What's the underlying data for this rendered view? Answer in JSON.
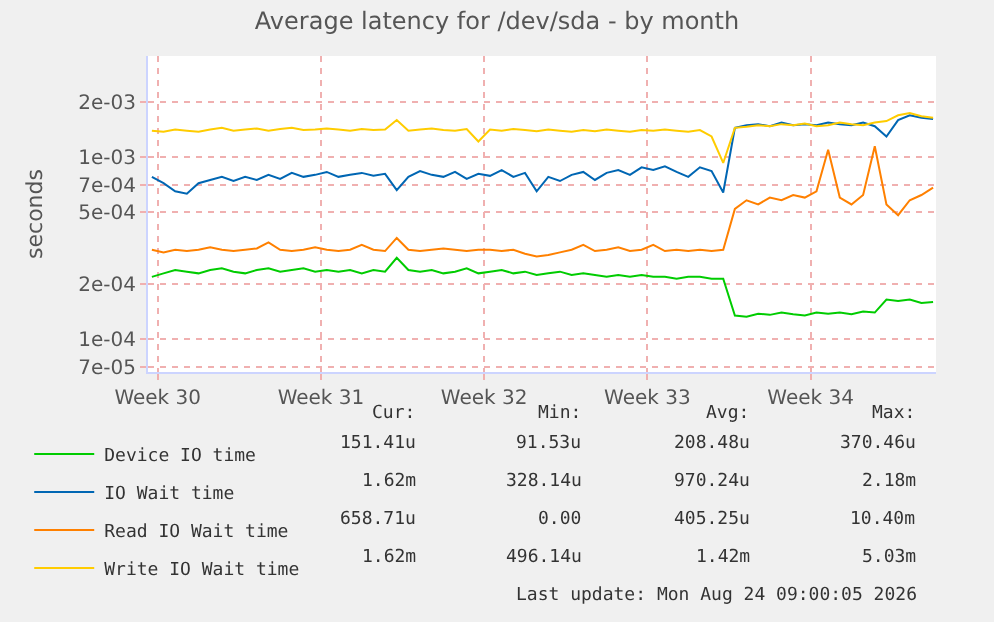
{
  "chart_data": {
    "type": "line",
    "title": "Average latency for /dev/sda - by month",
    "ylabel": "seconds",
    "x": [
      "2026-07-21T18:00",
      "2026-07-22T06:00",
      "2026-07-22T18:00",
      "2026-07-23T06:00",
      "2026-07-23T18:00",
      "2026-07-24T06:00",
      "2026-07-24T18:00",
      "2026-07-25T06:00",
      "2026-07-25T18:00",
      "2026-07-26T06:00",
      "2026-07-26T18:00",
      "2026-07-27T06:00",
      "2026-07-27T18:00",
      "2026-07-28T06:00",
      "2026-07-28T18:00",
      "2026-07-29T06:00",
      "2026-07-29T18:00",
      "2026-07-30T06:00",
      "2026-07-30T18:00",
      "2026-07-31T06:00",
      "2026-07-31T18:00",
      "2026-08-01T06:00",
      "2026-08-01T18:00",
      "2026-08-02T06:00",
      "2026-08-02T18:00",
      "2026-08-03T06:00",
      "2026-08-03T18:00",
      "2026-08-04T06:00",
      "2026-08-04T18:00",
      "2026-08-05T06:00",
      "2026-08-05T18:00",
      "2026-08-06T06:00",
      "2026-08-06T18:00",
      "2026-08-07T06:00",
      "2026-08-07T18:00",
      "2026-08-08T06:00",
      "2026-08-08T18:00",
      "2026-08-09T06:00",
      "2026-08-09T18:00",
      "2026-08-10T06:00",
      "2026-08-10T18:00",
      "2026-08-11T06:00",
      "2026-08-11T18:00",
      "2026-08-12T06:00",
      "2026-08-12T18:00",
      "2026-08-13T06:00",
      "2026-08-13T18:00",
      "2026-08-14T06:00",
      "2026-08-14T18:00",
      "2026-08-15T06:00",
      "2026-08-15T18:00",
      "2026-08-16T06:00",
      "2026-08-16T18:00",
      "2026-08-17T06:00",
      "2026-08-17T18:00",
      "2026-08-18T06:00",
      "2026-08-18T18:00",
      "2026-08-19T06:00",
      "2026-08-19T18:00",
      "2026-08-20T06:00",
      "2026-08-20T18:00",
      "2026-08-21T06:00",
      "2026-08-21T18:00",
      "2026-08-22T06:00",
      "2026-08-22T18:00",
      "2026-08-23T06:00",
      "2026-08-23T18:00",
      "2026-08-24T06:00"
    ],
    "series": [
      {
        "name": "Device IO time",
        "color": "#00cc00",
        "values": [
          0.00022,
          0.00023,
          0.00024,
          0.000235,
          0.00023,
          0.00024,
          0.000245,
          0.000235,
          0.00023,
          0.00024,
          0.000245,
          0.000235,
          0.00024,
          0.000245,
          0.000235,
          0.00024,
          0.000235,
          0.00024,
          0.00023,
          0.00024,
          0.000235,
          0.00028,
          0.00024,
          0.000235,
          0.00024,
          0.00023,
          0.000235,
          0.000245,
          0.00023,
          0.000235,
          0.00024,
          0.00023,
          0.000235,
          0.000225,
          0.00023,
          0.000235,
          0.000225,
          0.00023,
          0.000225,
          0.00022,
          0.000225,
          0.00022,
          0.000225,
          0.00022,
          0.00022,
          0.000215,
          0.00022,
          0.00022,
          0.000215,
          0.000215,
          0.000135,
          0.000133,
          0.000138,
          0.000136,
          0.00014,
          0.000137,
          0.000135,
          0.00014,
          0.000138,
          0.00014,
          0.000137,
          0.000142,
          0.00014,
          0.000165,
          0.000162,
          0.000165,
          0.000158,
          0.00016
        ]
      },
      {
        "name": "IO Wait time",
        "color": "#0066b3",
        "values": [
          0.00078,
          0.00072,
          0.00065,
          0.00063,
          0.00072,
          0.00075,
          0.00078,
          0.00074,
          0.00078,
          0.00075,
          0.0008,
          0.00076,
          0.00082,
          0.00078,
          0.0008,
          0.00083,
          0.00078,
          0.0008,
          0.00082,
          0.00079,
          0.00081,
          0.00066,
          0.00078,
          0.00084,
          0.0008,
          0.00078,
          0.00083,
          0.00076,
          0.00081,
          0.00079,
          0.00085,
          0.00078,
          0.00082,
          0.00065,
          0.00078,
          0.00074,
          0.0008,
          0.00083,
          0.00075,
          0.00082,
          0.00085,
          0.0008,
          0.00088,
          0.00085,
          0.00089,
          0.00083,
          0.00078,
          0.00088,
          0.00084,
          0.00064,
          0.00145,
          0.0015,
          0.00152,
          0.00148,
          0.00155,
          0.0015,
          0.00152,
          0.0015,
          0.00155,
          0.00152,
          0.0015,
          0.00155,
          0.00148,
          0.0013,
          0.0016,
          0.0017,
          0.00165,
          0.00162
        ]
      },
      {
        "name": "Read IO Wait time",
        "color": "#ff8000",
        "values": [
          0.00031,
          0.0003,
          0.00031,
          0.000305,
          0.00031,
          0.00032,
          0.00031,
          0.000305,
          0.00031,
          0.000315,
          0.00034,
          0.00031,
          0.000305,
          0.00031,
          0.00032,
          0.00031,
          0.000305,
          0.00031,
          0.00033,
          0.00031,
          0.000305,
          0.00036,
          0.00031,
          0.000305,
          0.00031,
          0.000315,
          0.00031,
          0.000305,
          0.00031,
          0.00031,
          0.000305,
          0.00031,
          0.000295,
          0.000285,
          0.00029,
          0.0003,
          0.00031,
          0.00033,
          0.000305,
          0.00031,
          0.00032,
          0.000305,
          0.00031,
          0.00033,
          0.000305,
          0.00031,
          0.000305,
          0.00031,
          0.000305,
          0.00031,
          0.00052,
          0.00058,
          0.00055,
          0.0006,
          0.00058,
          0.00062,
          0.0006,
          0.00065,
          0.0011,
          0.0006,
          0.00055,
          0.00062,
          0.00115,
          0.00055,
          0.00048,
          0.00058,
          0.00062,
          0.00068
        ]
      },
      {
        "name": "Write IO Wait time",
        "color": "#ffcc00",
        "values": [
          0.0014,
          0.00138,
          0.00142,
          0.0014,
          0.00138,
          0.00142,
          0.00145,
          0.0014,
          0.00142,
          0.00144,
          0.0014,
          0.00143,
          0.00145,
          0.00141,
          0.00142,
          0.00144,
          0.00142,
          0.0014,
          0.00143,
          0.00141,
          0.00142,
          0.0016,
          0.0014,
          0.00142,
          0.00144,
          0.00141,
          0.0014,
          0.00143,
          0.00122,
          0.00142,
          0.0014,
          0.00143,
          0.00141,
          0.00139,
          0.00142,
          0.0014,
          0.00138,
          0.00141,
          0.00139,
          0.00142,
          0.0014,
          0.00138,
          0.00141,
          0.0014,
          0.00142,
          0.0014,
          0.00138,
          0.00141,
          0.0013,
          0.00093,
          0.00145,
          0.00147,
          0.0015,
          0.00148,
          0.00152,
          0.0015,
          0.00153,
          0.00148,
          0.0015,
          0.00155,
          0.00152,
          0.0015,
          0.00155,
          0.00158,
          0.0017,
          0.00175,
          0.00168,
          0.00165
        ]
      }
    ],
    "log": "y",
    "grid": true,
    "legend": "bottom",
    "xlim": [
      "2026-07-21T14:00",
      "2026-08-24T09:00"
    ],
    "xticks": [
      {
        "value": "2026-07-22",
        "label": "Week 30"
      },
      {
        "value": "2026-07-29",
        "label": "Week 31"
      },
      {
        "value": "2026-08-05",
        "label": "Week 32"
      },
      {
        "value": "2026-08-12",
        "label": "Week 33"
      },
      {
        "value": "2026-08-19",
        "label": "Week 34"
      }
    ],
    "ylim": [
      6.6e-05,
      0.0036
    ],
    "yticks": [
      {
        "value": 7e-05,
        "label": "7e-05"
      },
      {
        "value": 0.0001,
        "label": "1e-04"
      },
      {
        "value": 0.0002,
        "label": "2e-04"
      },
      {
        "value": 0.0005,
        "label": "5e-04"
      },
      {
        "value": 0.0007,
        "label": "7e-04"
      },
      {
        "value": 0.001,
        "label": "1e-03"
      },
      {
        "value": 0.002,
        "label": "2e-03"
      }
    ],
    "annotations": [
      "Cur:",
      "Min:",
      "Avg:",
      "Max:",
      "151.41u",
      "91.53u",
      "208.48u",
      "370.46u",
      "1.62m",
      "328.14u",
      "970.24u",
      "2.18m",
      "658.71u",
      "0.00",
      "405.25u",
      "10.40m",
      "1.62m",
      "496.14u",
      "1.42m",
      "5.03m",
      "Last update: Mon Aug 24 09:00:05 2026"
    ]
  }
}
